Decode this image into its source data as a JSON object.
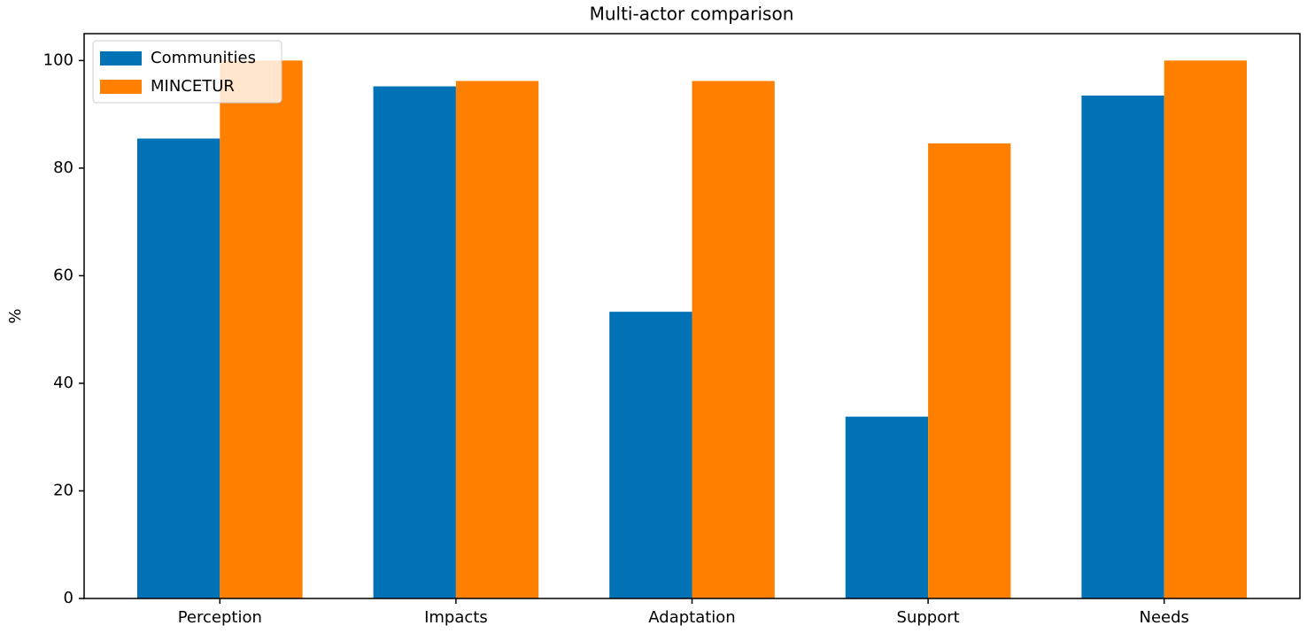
{
  "chart_data": {
    "type": "bar",
    "title": "Multi-actor comparison",
    "y_label": "%",
    "categories": [
      "Perception",
      "Impacts",
      "Adaptation",
      "Support",
      "Needs"
    ],
    "series": [
      {
        "name": "Communities",
        "color": "#0072b5",
        "values": [
          85.5,
          95.2,
          53.3,
          33.8,
          93.5
        ]
      },
      {
        "name": "MINCETUR",
        "color": "#ff8000",
        "values": [
          100,
          96.2,
          96.2,
          84.6,
          100
        ]
      }
    ],
    "ylim": [
      0,
      105
    ],
    "yticks": [
      0,
      20,
      40,
      60,
      80,
      100
    ],
    "legend": "upper left"
  }
}
